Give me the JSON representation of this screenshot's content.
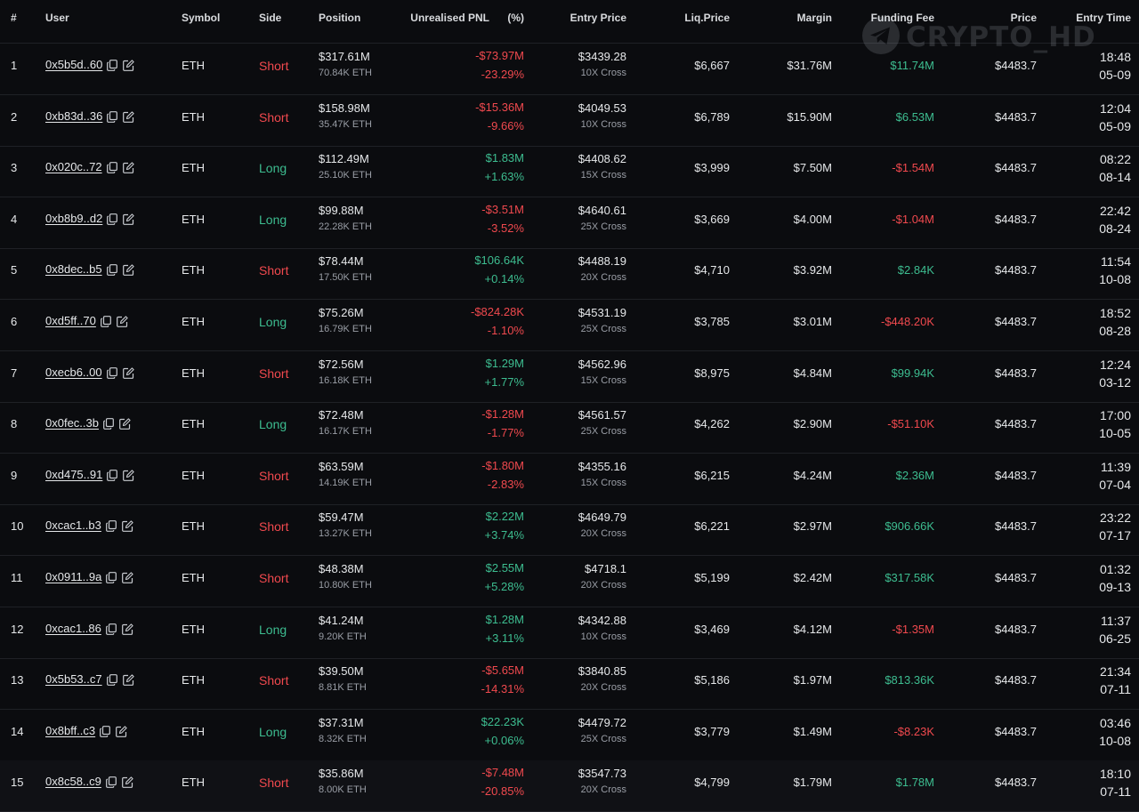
{
  "headers": {
    "index": "#",
    "user": "User",
    "symbol": "Symbol",
    "side": "Side",
    "position": "Position",
    "pnl": "Unrealised PNL",
    "pct": "(%)",
    "entry_price": "Entry Price",
    "liq_price": "Liq.Price",
    "margin": "Margin",
    "funding_fee": "Funding Fee",
    "price": "Price",
    "entry_time": "Entry Time"
  },
  "watermark": {
    "text": "CRYPTO_HD",
    "icon": "telegram-icon"
  },
  "colors": {
    "positive": "#3dbd90",
    "negative": "#f0494e",
    "background": "#0b0c0f"
  },
  "rows": [
    {
      "index": "1",
      "user": "0x5b5d..60",
      "symbol": "ETH",
      "side": "Short",
      "position_usd": "$317.61M",
      "position_eth": "70.84K ETH",
      "pnl": "-$73.97M",
      "pnl_pct": "-23.29%",
      "entry_price": "$3439.28",
      "leverage": "10X Cross",
      "liq_price": "$6,667",
      "margin": "$31.76M",
      "funding_fee": "$11.74M",
      "price": "$4483.7",
      "time": "18:48",
      "date": "05-09"
    },
    {
      "index": "2",
      "user": "0xb83d..36",
      "symbol": "ETH",
      "side": "Short",
      "position_usd": "$158.98M",
      "position_eth": "35.47K ETH",
      "pnl": "-$15.36M",
      "pnl_pct": "-9.66%",
      "entry_price": "$4049.53",
      "leverage": "10X Cross",
      "liq_price": "$6,789",
      "margin": "$15.90M",
      "funding_fee": "$6.53M",
      "price": "$4483.7",
      "time": "12:04",
      "date": "05-09"
    },
    {
      "index": "3",
      "user": "0x020c..72",
      "symbol": "ETH",
      "side": "Long",
      "position_usd": "$112.49M",
      "position_eth": "25.10K ETH",
      "pnl": "$1.83M",
      "pnl_pct": "+1.63%",
      "entry_price": "$4408.62",
      "leverage": "15X Cross",
      "liq_price": "$3,999",
      "margin": "$7.50M",
      "funding_fee": "-$1.54M",
      "price": "$4483.7",
      "time": "08:22",
      "date": "08-14"
    },
    {
      "index": "4",
      "user": "0xb8b9..d2",
      "symbol": "ETH",
      "side": "Long",
      "position_usd": "$99.88M",
      "position_eth": "22.28K ETH",
      "pnl": "-$3.51M",
      "pnl_pct": "-3.52%",
      "entry_price": "$4640.61",
      "leverage": "25X Cross",
      "liq_price": "$3,669",
      "margin": "$4.00M",
      "funding_fee": "-$1.04M",
      "price": "$4483.7",
      "time": "22:42",
      "date": "08-24"
    },
    {
      "index": "5",
      "user": "0x8dec..b5",
      "symbol": "ETH",
      "side": "Short",
      "position_usd": "$78.44M",
      "position_eth": "17.50K ETH",
      "pnl": "$106.64K",
      "pnl_pct": "+0.14%",
      "entry_price": "$4488.19",
      "leverage": "20X Cross",
      "liq_price": "$4,710",
      "margin": "$3.92M",
      "funding_fee": "$2.84K",
      "price": "$4483.7",
      "time": "11:54",
      "date": "10-08"
    },
    {
      "index": "6",
      "user": "0xd5ff..70",
      "symbol": "ETH",
      "side": "Long",
      "position_usd": "$75.26M",
      "position_eth": "16.79K ETH",
      "pnl": "-$824.28K",
      "pnl_pct": "-1.10%",
      "entry_price": "$4531.19",
      "leverage": "25X Cross",
      "liq_price": "$3,785",
      "margin": "$3.01M",
      "funding_fee": "-$448.20K",
      "price": "$4483.7",
      "time": "18:52",
      "date": "08-28"
    },
    {
      "index": "7",
      "user": "0xecb6..00",
      "symbol": "ETH",
      "side": "Short",
      "position_usd": "$72.56M",
      "position_eth": "16.18K ETH",
      "pnl": "$1.29M",
      "pnl_pct": "+1.77%",
      "entry_price": "$4562.96",
      "leverage": "15X Cross",
      "liq_price": "$8,975",
      "margin": "$4.84M",
      "funding_fee": "$99.94K",
      "price": "$4483.7",
      "time": "12:24",
      "date": "03-12"
    },
    {
      "index": "8",
      "user": "0x0fec..3b",
      "symbol": "ETH",
      "side": "Long",
      "position_usd": "$72.48M",
      "position_eth": "16.17K ETH",
      "pnl": "-$1.28M",
      "pnl_pct": "-1.77%",
      "entry_price": "$4561.57",
      "leverage": "25X Cross",
      "liq_price": "$4,262",
      "margin": "$2.90M",
      "funding_fee": "-$51.10K",
      "price": "$4483.7",
      "time": "17:00",
      "date": "10-05"
    },
    {
      "index": "9",
      "user": "0xd475..91",
      "symbol": "ETH",
      "side": "Short",
      "position_usd": "$63.59M",
      "position_eth": "14.19K ETH",
      "pnl": "-$1.80M",
      "pnl_pct": "-2.83%",
      "entry_price": "$4355.16",
      "leverage": "15X Cross",
      "liq_price": "$6,215",
      "margin": "$4.24M",
      "funding_fee": "$2.36M",
      "price": "$4483.7",
      "time": "11:39",
      "date": "07-04"
    },
    {
      "index": "10",
      "user": "0xcac1..b3",
      "symbol": "ETH",
      "side": "Short",
      "position_usd": "$59.47M",
      "position_eth": "13.27K ETH",
      "pnl": "$2.22M",
      "pnl_pct": "+3.74%",
      "entry_price": "$4649.79",
      "leverage": "20X Cross",
      "liq_price": "$6,221",
      "margin": "$2.97M",
      "funding_fee": "$906.66K",
      "price": "$4483.7",
      "time": "23:22",
      "date": "07-17"
    },
    {
      "index": "11",
      "user": "0x0911..9a",
      "symbol": "ETH",
      "side": "Short",
      "position_usd": "$48.38M",
      "position_eth": "10.80K ETH",
      "pnl": "$2.55M",
      "pnl_pct": "+5.28%",
      "entry_price": "$4718.1",
      "leverage": "20X Cross",
      "liq_price": "$5,199",
      "margin": "$2.42M",
      "funding_fee": "$317.58K",
      "price": "$4483.7",
      "time": "01:32",
      "date": "09-13"
    },
    {
      "index": "12",
      "user": "0xcac1..86",
      "symbol": "ETH",
      "side": "Long",
      "position_usd": "$41.24M",
      "position_eth": "9.20K ETH",
      "pnl": "$1.28M",
      "pnl_pct": "+3.11%",
      "entry_price": "$4342.88",
      "leverage": "10X Cross",
      "liq_price": "$3,469",
      "margin": "$4.12M",
      "funding_fee": "-$1.35M",
      "price": "$4483.7",
      "time": "11:37",
      "date": "06-25"
    },
    {
      "index": "13",
      "user": "0x5b53..c7",
      "symbol": "ETH",
      "side": "Short",
      "position_usd": "$39.50M",
      "position_eth": "8.81K ETH",
      "pnl": "-$5.65M",
      "pnl_pct": "-14.31%",
      "entry_price": "$3840.85",
      "leverage": "20X Cross",
      "liq_price": "$5,186",
      "margin": "$1.97M",
      "funding_fee": "$813.36K",
      "price": "$4483.7",
      "time": "21:34",
      "date": "07-11"
    },
    {
      "index": "14",
      "user": "0x8bff..c3",
      "symbol": "ETH",
      "side": "Long",
      "position_usd": "$37.31M",
      "position_eth": "8.32K ETH",
      "pnl": "$22.23K",
      "pnl_pct": "+0.06%",
      "entry_price": "$4479.72",
      "leverage": "25X Cross",
      "liq_price": "$3,779",
      "margin": "$1.49M",
      "funding_fee": "-$8.23K",
      "price": "$4483.7",
      "time": "03:46",
      "date": "10-08"
    },
    {
      "index": "15",
      "user": "0x8c58..c9",
      "symbol": "ETH",
      "side": "Short",
      "position_usd": "$35.86M",
      "position_eth": "8.00K ETH",
      "pnl": "-$7.48M",
      "pnl_pct": "-20.85%",
      "entry_price": "$3547.73",
      "leverage": "20X Cross",
      "liq_price": "$4,799",
      "margin": "$1.79M",
      "funding_fee": "$1.78M",
      "price": "$4483.7",
      "time": "18:10",
      "date": "07-11"
    }
  ]
}
